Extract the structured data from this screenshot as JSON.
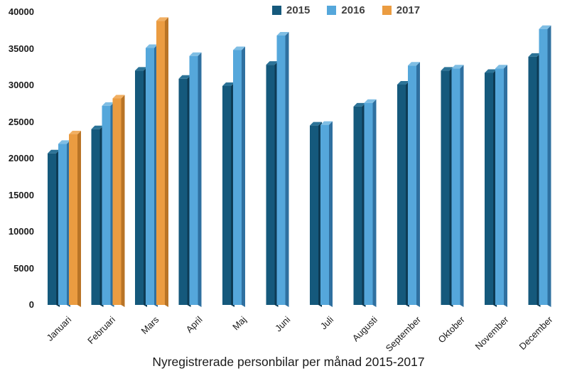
{
  "chart_data": {
    "type": "bar",
    "style": "3d-grouped",
    "title": "Nyregistrerade personbilar per månad 2015-2017",
    "categories": [
      "Januari",
      "Februari",
      "Mars",
      "April",
      "Maj",
      "Juni",
      "Juli",
      "Augusti",
      "September",
      "Oktober",
      "November",
      "December"
    ],
    "series": [
      {
        "name": "2015",
        "color": "#15597C",
        "side_color": "#0D3B55",
        "top_color": "#2C7397",
        "values": [
          20700,
          24000,
          32000,
          30900,
          29900,
          32800,
          24500,
          27100,
          30100,
          32000,
          31700,
          33900
        ]
      },
      {
        "name": "2016",
        "color": "#55A7DB",
        "side_color": "#2F70A0",
        "top_color": "#7FBEE4",
        "values": [
          22000,
          27200,
          35100,
          34000,
          34800,
          36800,
          24600,
          27600,
          32700,
          32300,
          32300,
          37700
        ]
      },
      {
        "name": "2017",
        "color": "#EB9C41",
        "side_color": "#B97426",
        "top_color": "#F1AF62",
        "values": [
          23300,
          28200,
          38800,
          null,
          null,
          null,
          null,
          null,
          null,
          null,
          null,
          null
        ]
      }
    ],
    "xlabel": "",
    "ylabel": "",
    "ylim": [
      0,
      40000
    ],
    "ytick_step": 5000,
    "yticks": [
      "0",
      "5000",
      "10000",
      "15000",
      "20000",
      "25000",
      "30000",
      "35000",
      "40000"
    ],
    "grid": false,
    "legend_position": "top",
    "axis_text_color": "#1a1a1a",
    "legend_text_color": "#404040",
    "background_color": "#ffffff"
  }
}
